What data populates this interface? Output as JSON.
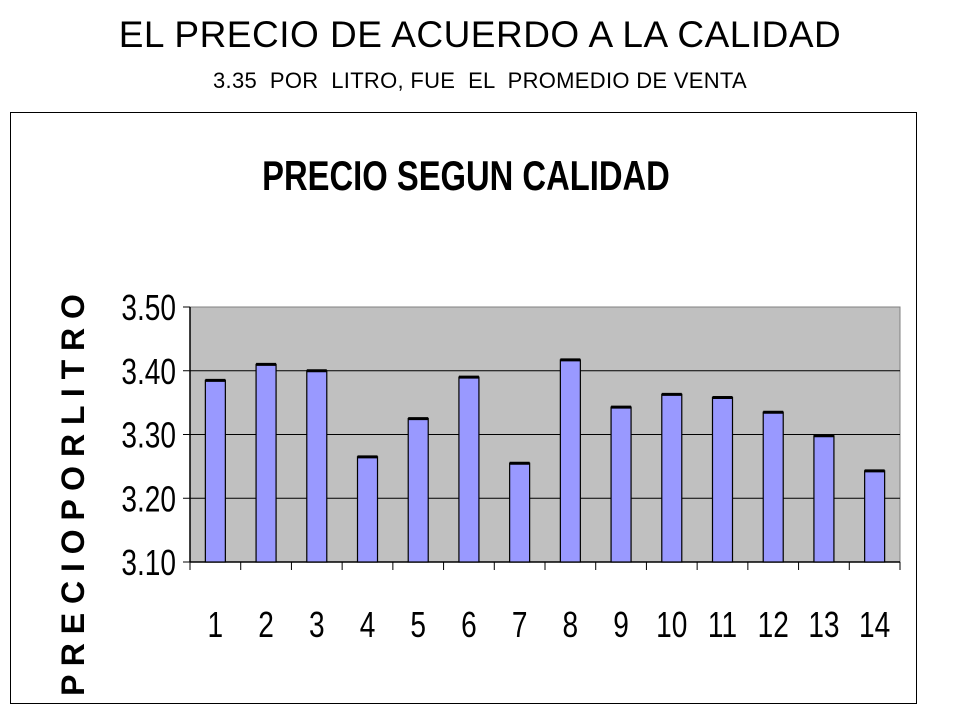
{
  "slide": {
    "title": "EL PRECIO DE ACUERDO  A LA CALIDAD",
    "subtitle": "3.35  POR  LITRO, FUE  EL  PROMEDIO DE VENTA"
  },
  "chart_data": {
    "type": "bar",
    "title": "PRECIO SEGUN  CALIDAD",
    "xlabel": "",
    "ylabel": "P R E C I O  P O R   L I T R O",
    "categories": [
      "1",
      "2",
      "3",
      "4",
      "5",
      "6",
      "7",
      "8",
      "9",
      "10",
      "11",
      "12",
      "13",
      "14"
    ],
    "values": [
      3.385,
      3.41,
      3.4,
      3.265,
      3.325,
      3.39,
      3.255,
      3.417,
      3.343,
      3.363,
      3.358,
      3.335,
      3.298,
      3.243
    ],
    "ylim": [
      3.1,
      3.5
    ],
    "yticks": [
      "3.50",
      "3.40",
      "3.30",
      "3.20",
      "3.10"
    ],
    "grid": true,
    "legend": "none",
    "colors": {
      "bar_fill": "#9999ff",
      "plot_background": "#c0c0c0",
      "axis": "#000000"
    }
  }
}
